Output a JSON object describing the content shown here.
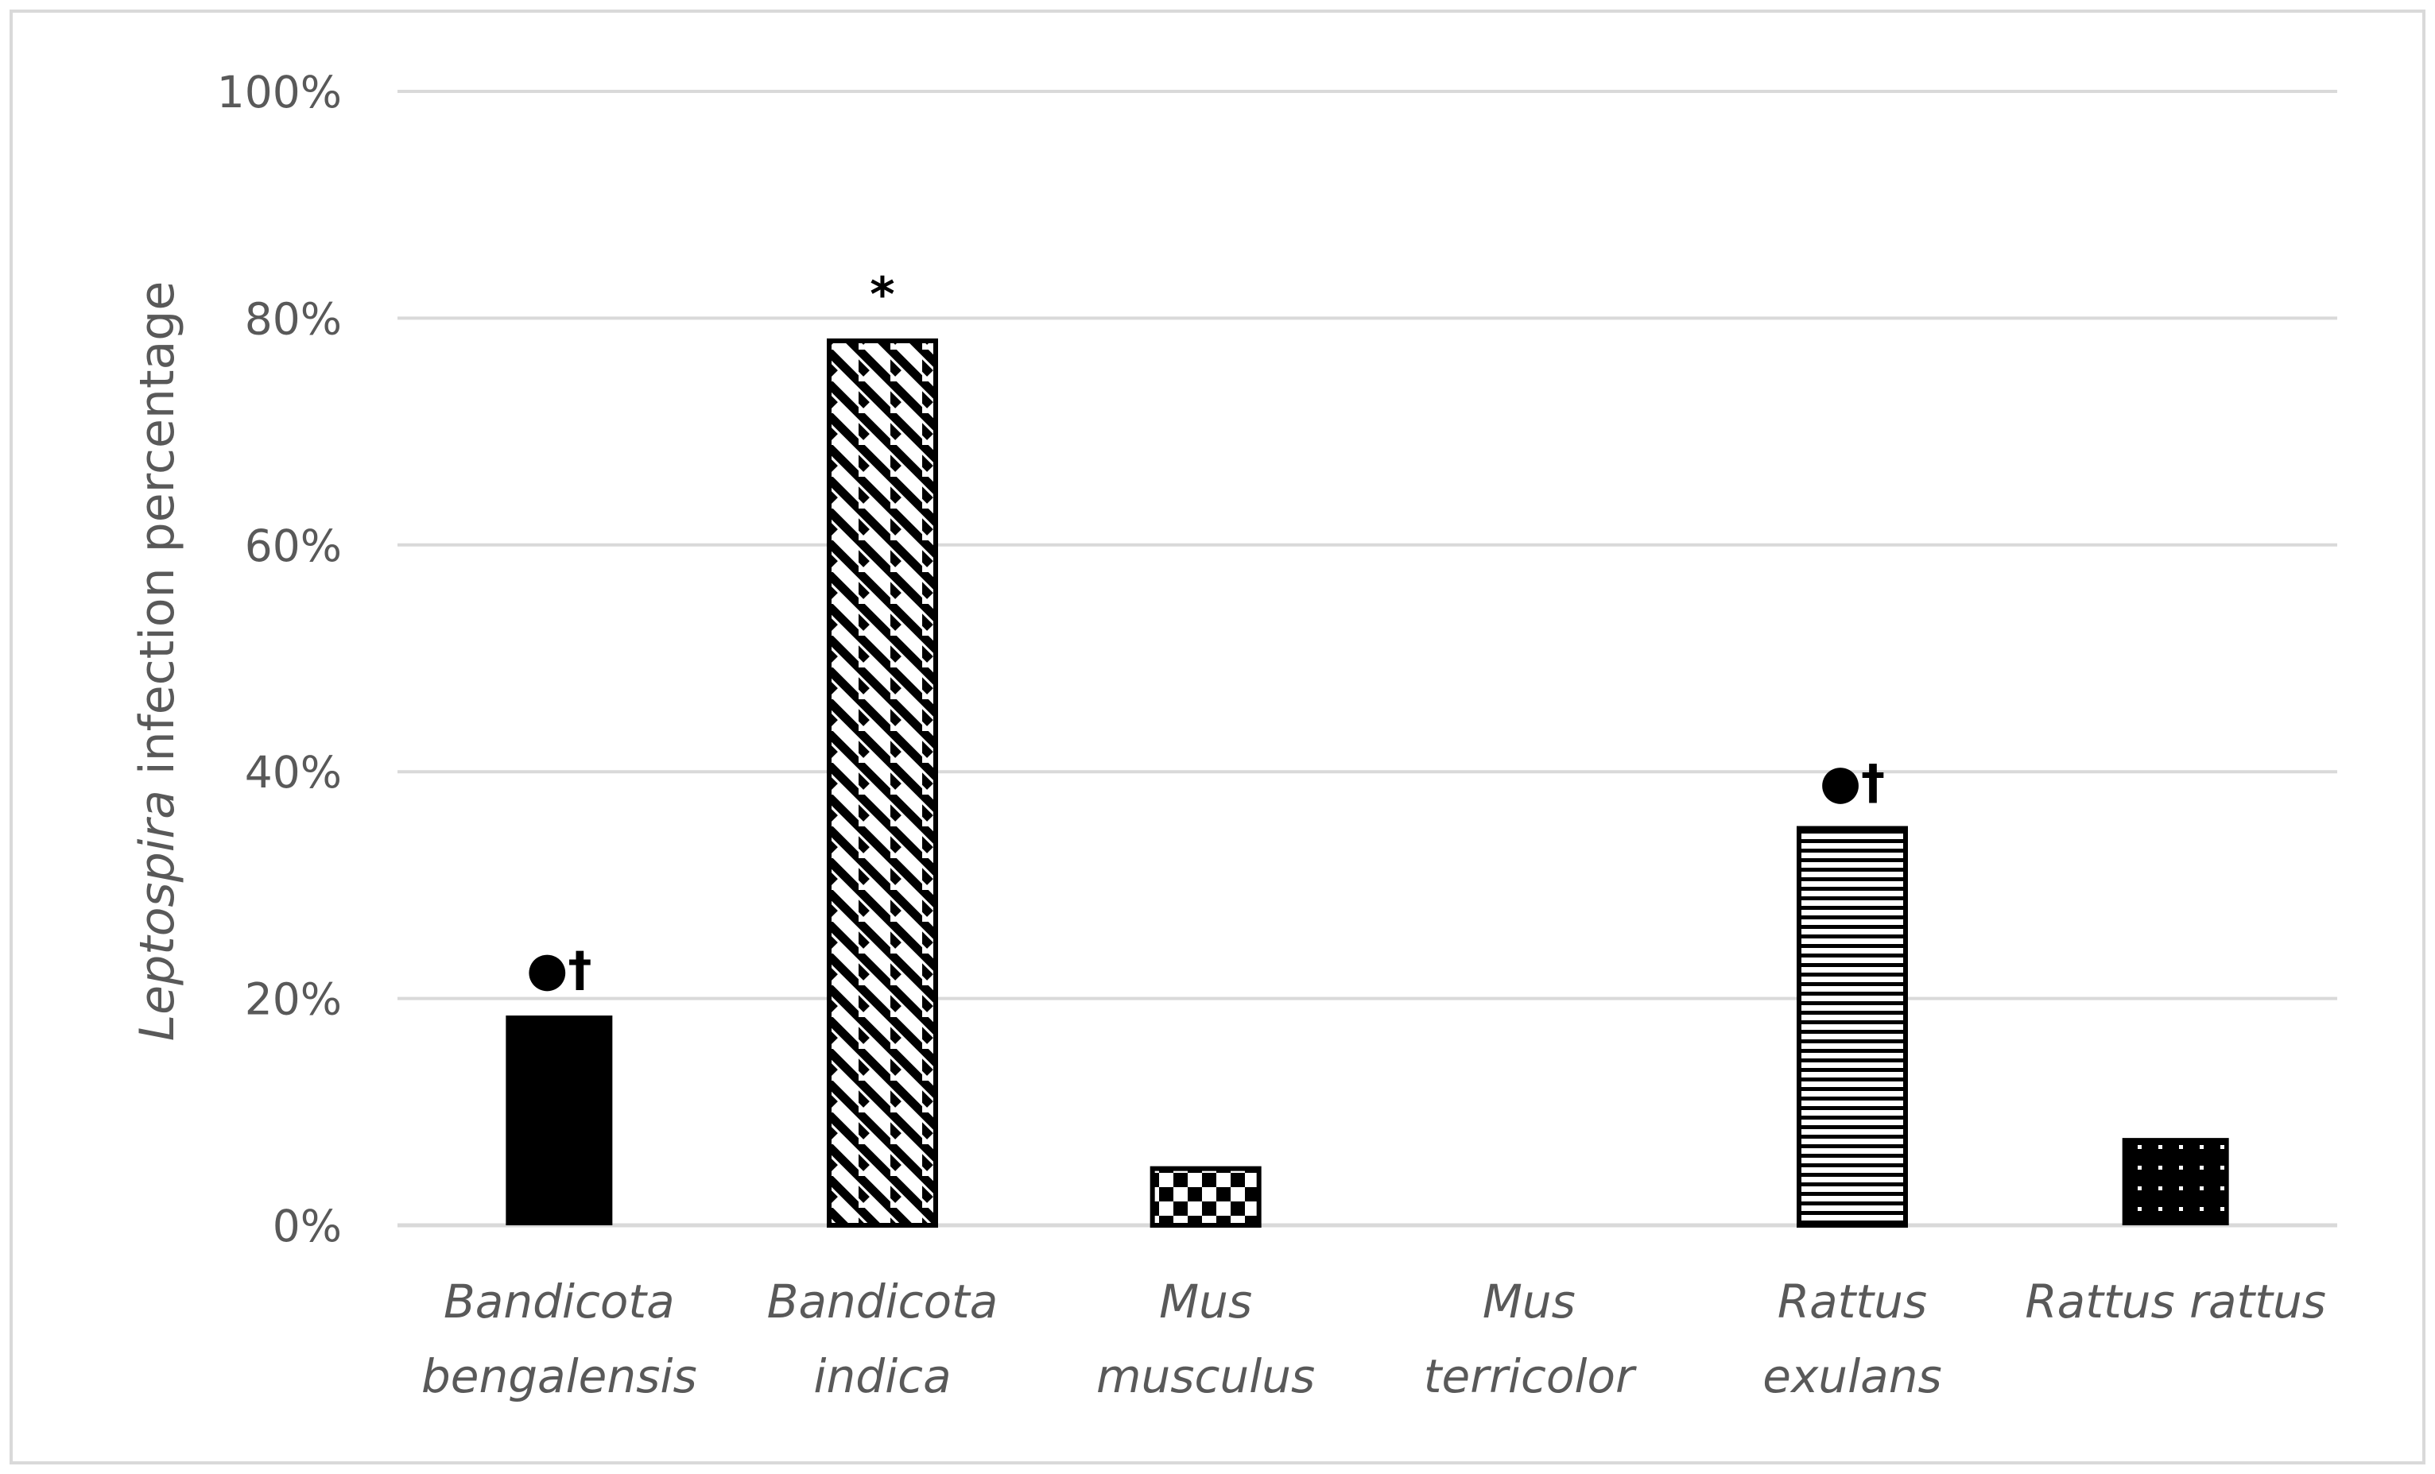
{
  "chart_data": {
    "type": "bar",
    "title": "",
    "xlabel": "",
    "ylabel": {
      "italic": "Leptospira",
      "rest": " infection percentage"
    },
    "ylim": [
      0,
      100
    ],
    "yticks": [
      0,
      20,
      40,
      60,
      80,
      100
    ],
    "ytick_labels": [
      "0%",
      "20%",
      "40%",
      "60%",
      "80%",
      "100%"
    ],
    "grid": true,
    "categories": [
      {
        "line1": "Bandicota",
        "line2": "bengalensis",
        "value": 18.5,
        "pattern": "solid",
        "annotation": "●†"
      },
      {
        "line1": "Bandicota",
        "line2": "indica",
        "value": 78,
        "pattern": "diagonal",
        "annotation": "*"
      },
      {
        "line1": "Mus",
        "line2": "musculus",
        "value": 5,
        "pattern": "checker",
        "annotation": ""
      },
      {
        "line1": "Mus",
        "line2": "terricolor",
        "value": 0,
        "pattern": "none",
        "annotation": ""
      },
      {
        "line1": "Rattus",
        "line2": "exulans",
        "value": 35,
        "pattern": "horizontal",
        "annotation": "●†"
      },
      {
        "line1": "Rattus rattus",
        "line2": "",
        "value": 7.7,
        "pattern": "dots",
        "annotation": ""
      }
    ],
    "colors": {
      "bar": "#000000",
      "grid": "#d9d9d9",
      "text": "#595959",
      "frame": "#d9d9d9"
    }
  }
}
